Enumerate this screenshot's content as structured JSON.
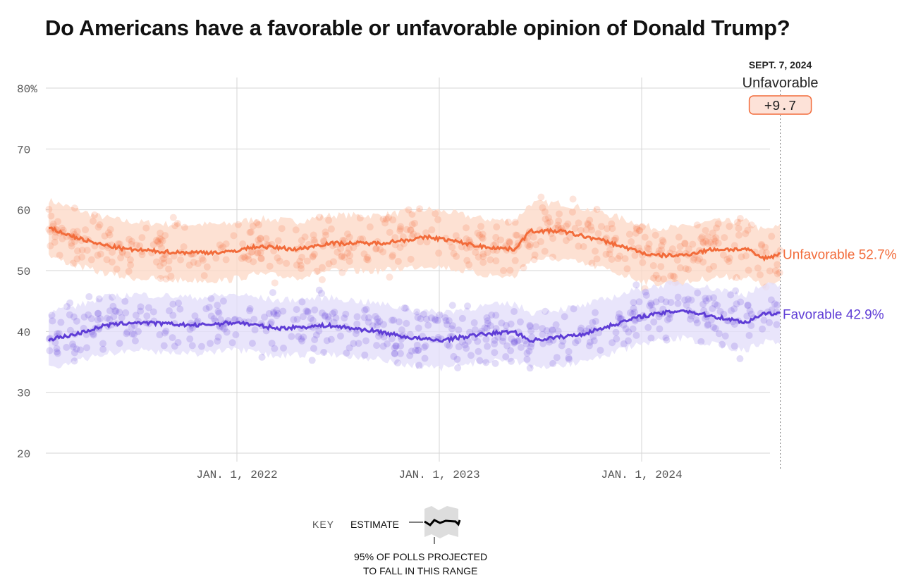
{
  "title": "Do Americans have a favorable or unfavorable opinion of Donald Trump?",
  "chart_data": {
    "type": "line",
    "title": "Do Americans have a favorable or unfavorable opinion of Donald Trump?",
    "ylim": [
      20,
      80
    ],
    "yticks": [
      "80%",
      "70",
      "60",
      "50",
      "40",
      "30",
      "20"
    ],
    "ytick_values": [
      80,
      70,
      60,
      50,
      40,
      30,
      20
    ],
    "xlim": [
      2021.07,
      2024.685
    ],
    "xticks": [
      {
        "label": "JAN. 1, 2022",
        "value": 2022
      },
      {
        "label": "JAN. 1, 2023",
        "value": 2023
      },
      {
        "label": "JAN. 1, 2024",
        "value": 2024
      }
    ],
    "grid": true,
    "series": [
      {
        "name": "Unfavorable",
        "color": "#f26b3a",
        "band_color": "#fcd9c8",
        "last_label": "Unfavorable 52.7%",
        "x": [
          2021.07,
          2021.2,
          2021.3,
          2021.45,
          2021.7,
          2021.95,
          2022.1,
          2022.3,
          2022.45,
          2022.7,
          2022.95,
          2023.05,
          2023.2,
          2023.37,
          2023.45,
          2023.6,
          2023.8,
          2023.95,
          2024.05,
          2024.2,
          2024.35,
          2024.52,
          2024.6,
          2024.685
        ],
        "y": [
          57,
          55.5,
          54.5,
          53.5,
          53,
          53,
          54,
          53.5,
          54.5,
          54.5,
          55.5,
          55,
          54,
          53.5,
          56.5,
          56.5,
          55,
          53.5,
          52.5,
          52.5,
          53.5,
          53.5,
          52,
          52.7
        ]
      },
      {
        "name": "Favorable",
        "color": "#5f3dd6",
        "band_color": "#e4dffa",
        "last_label": "Favorable 42.9%",
        "x": [
          2021.07,
          2021.2,
          2021.35,
          2021.5,
          2021.8,
          2022,
          2022.2,
          2022.45,
          2022.7,
          2022.85,
          2023,
          2023.2,
          2023.37,
          2023.45,
          2023.7,
          2023.85,
          2024,
          2024.2,
          2024.35,
          2024.52,
          2024.6,
          2024.685
        ],
        "y": [
          38.7,
          39.5,
          41,
          41.5,
          41,
          41.5,
          40.5,
          41,
          40,
          39,
          38.5,
          39.5,
          40,
          38.5,
          39.5,
          41,
          42.5,
          43.5,
          42.5,
          41.5,
          43,
          42.9
        ]
      }
    ],
    "annotation": {
      "date": "SEPT. 7, 2024",
      "leader": "Unfavorable",
      "margin": "+9.7"
    },
    "key": {
      "label": "KEY",
      "estimate": "ESTIMATE",
      "range": [
        "95% OF POLLS PROJECTED",
        "TO FALL IN THIS RANGE"
      ]
    }
  }
}
